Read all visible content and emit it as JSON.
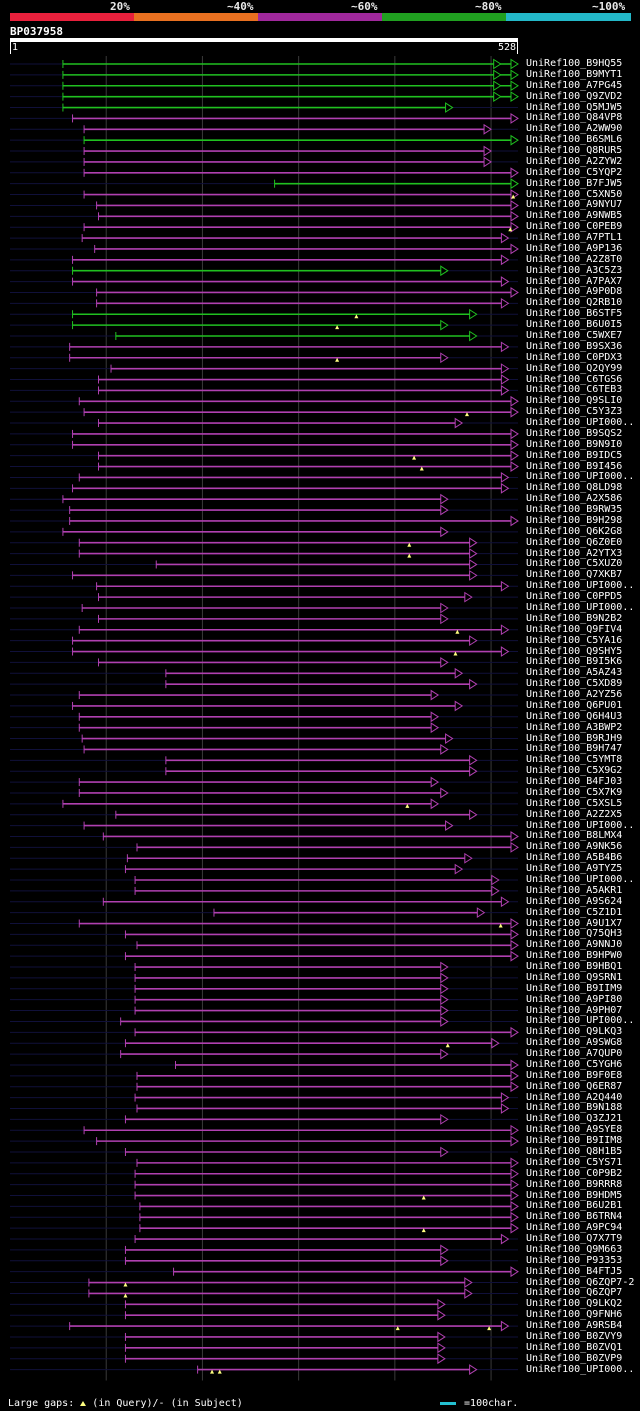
{
  "legend": {
    "labels": [
      "20%",
      "~40%",
      "~60%",
      "~80%",
      "~100%"
    ],
    "colors": [
      "#e8203c",
      "#e87020",
      "#a0289c",
      "#20a020",
      "#23b8c8"
    ]
  },
  "query": {
    "name": "BP037958",
    "start": "1",
    "end": "528",
    "length": 528
  },
  "hits": [
    {
      "label": "UniRef100_B9HQ55",
      "s": 55,
      "e": 528,
      "c": "g",
      "g": [
        510
      ]
    },
    {
      "label": "UniRef100_B9MYT1",
      "s": 55,
      "e": 528,
      "c": "g",
      "g": [
        510
      ]
    },
    {
      "label": "UniRef100_A7PG45",
      "s": 55,
      "e": 528,
      "c": "g",
      "g": [
        510
      ]
    },
    {
      "label": "UniRef100_Q9ZVD2",
      "s": 55,
      "e": 528,
      "c": "g",
      "g": [
        510
      ]
    },
    {
      "label": "UniRef100_Q5MJW5",
      "s": 55,
      "e": 460,
      "c": "g"
    },
    {
      "label": "UniRef100_Q84VP8",
      "s": 65,
      "e": 528,
      "c": "p"
    },
    {
      "label": "UniRef100_A2WW90",
      "s": 77,
      "e": 500,
      "c": "p"
    },
    {
      "label": "UniRef100_B6SML6",
      "s": 77,
      "e": 528,
      "c": "g"
    },
    {
      "label": "UniRef100_Q8RUR5",
      "s": 77,
      "e": 500,
      "c": "p"
    },
    {
      "label": "UniRef100_A2ZYW2",
      "s": 77,
      "e": 500,
      "c": "p"
    },
    {
      "label": "UniRef100_C5YQP2",
      "s": 77,
      "e": 528,
      "c": "p"
    },
    {
      "label": "UniRef100_B7FJW5",
      "s": 275,
      "e": 528,
      "c": "g"
    },
    {
      "label": "UniRef100_C5XN50",
      "s": 77,
      "e": 528,
      "c": "p",
      "t": [
        523
      ]
    },
    {
      "label": "UniRef100_A9NYU7",
      "s": 90,
      "e": 528,
      "c": "p"
    },
    {
      "label": "UniRef100_A9NWB5",
      "s": 92,
      "e": 528,
      "c": "p"
    },
    {
      "label": "UniRef100_C0PEB9",
      "s": 77,
      "e": 528,
      "c": "p",
      "t": [
        520
      ]
    },
    {
      "label": "UniRef100_A7PTL1",
      "s": 75,
      "e": 518,
      "c": "p"
    },
    {
      "label": "UniRef100_A9P136",
      "s": 88,
      "e": 528,
      "c": "p"
    },
    {
      "label": "UniRef100_A2Z8T0",
      "s": 65,
      "e": 518,
      "c": "p"
    },
    {
      "label": "UniRef100_A3C5Z3",
      "s": 65,
      "e": 455,
      "c": "g"
    },
    {
      "label": "UniRef100_A7PAX7",
      "s": 65,
      "e": 518,
      "c": "p"
    },
    {
      "label": "UniRef100_A9P0D8",
      "s": 90,
      "e": 528,
      "c": "p"
    },
    {
      "label": "UniRef100_Q2RB10",
      "s": 90,
      "e": 518,
      "c": "p"
    },
    {
      "label": "UniRef100_B6STF5",
      "s": 65,
      "e": 485,
      "c": "g",
      "t": [
        360
      ]
    },
    {
      "label": "UniRef100_B6U0I5",
      "s": 65,
      "e": 455,
      "c": "g",
      "t": [
        340
      ]
    },
    {
      "label": "UniRef100_C5WXE7",
      "s": 110,
      "e": 485,
      "c": "g"
    },
    {
      "label": "UniRef100_B9SX36",
      "s": 62,
      "e": 518,
      "c": "p"
    },
    {
      "label": "UniRef100_C0PDX3",
      "s": 62,
      "e": 455,
      "c": "p",
      "t": [
        340
      ]
    },
    {
      "label": "UniRef100_Q2QY99",
      "s": 105,
      "e": 518,
      "c": "p"
    },
    {
      "label": "UniRef100_C6TGS6",
      "s": 92,
      "e": 518,
      "c": "p"
    },
    {
      "label": "UniRef100_C6TEB3",
      "s": 92,
      "e": 518,
      "c": "p"
    },
    {
      "label": "UniRef100_Q9SLI0",
      "s": 72,
      "e": 528,
      "c": "p"
    },
    {
      "label": "UniRef100_C5Y3Z3",
      "s": 77,
      "e": 528,
      "c": "p",
      "t": [
        475
      ]
    },
    {
      "label": "UniRef100_UPI000..",
      "s": 92,
      "e": 470,
      "c": "p"
    },
    {
      "label": "UniRef100_B9SQS2",
      "s": 65,
      "e": 528,
      "c": "p"
    },
    {
      "label": "UniRef100_B9N9I0",
      "s": 65,
      "e": 528,
      "c": "p"
    },
    {
      "label": "UniRef100_B9IDC5",
      "s": 92,
      "e": 528,
      "c": "p",
      "t": [
        420
      ]
    },
    {
      "label": "UniRef100_B9I456",
      "s": 92,
      "e": 528,
      "c": "p",
      "t": [
        428
      ]
    },
    {
      "label": "UniRef100_UPI000..",
      "s": 72,
      "e": 518,
      "c": "p"
    },
    {
      "label": "UniRef100_Q8LD98",
      "s": 65,
      "e": 518,
      "c": "p"
    },
    {
      "label": "UniRef100_A2X586",
      "s": 55,
      "e": 455,
      "c": "p"
    },
    {
      "label": "UniRef100_B9RW35",
      "s": 62,
      "e": 455,
      "c": "p"
    },
    {
      "label": "UniRef100_B9H298",
      "s": 62,
      "e": 528,
      "c": "p"
    },
    {
      "label": "UniRef100_Q6K2G8",
      "s": 55,
      "e": 455,
      "c": "p"
    },
    {
      "label": "UniRef100_Q6Z0E0",
      "s": 72,
      "e": 485,
      "c": "p",
      "t": [
        415
      ]
    },
    {
      "label": "UniRef100_A2YTX3",
      "s": 72,
      "e": 485,
      "c": "p",
      "t": [
        415
      ]
    },
    {
      "label": "UniRef100_C5XUZ0",
      "s": 152,
      "e": 485,
      "c": "p"
    },
    {
      "label": "UniRef100_Q7XKB7",
      "s": 65,
      "e": 485,
      "c": "p"
    },
    {
      "label": "UniRef100_UPI000..",
      "s": 90,
      "e": 518,
      "c": "p"
    },
    {
      "label": "UniRef100_C0PPD5",
      "s": 92,
      "e": 480,
      "c": "p"
    },
    {
      "label": "UniRef100_UPI000..",
      "s": 75,
      "e": 455,
      "c": "p"
    },
    {
      "label": "UniRef100_B9N2B2",
      "s": 92,
      "e": 455,
      "c": "p"
    },
    {
      "label": "UniRef100_Q9FIV4",
      "s": 72,
      "e": 518,
      "c": "p",
      "t": [
        465
      ]
    },
    {
      "label": "UniRef100_C5YA16",
      "s": 65,
      "e": 485,
      "c": "p"
    },
    {
      "label": "UniRef100_Q9SHY5",
      "s": 65,
      "e": 518,
      "c": "p",
      "t": [
        463
      ]
    },
    {
      "label": "UniRef100_B9I5K6",
      "s": 92,
      "e": 455,
      "c": "p"
    },
    {
      "label": "UniRef100_A5AZ43",
      "s": 162,
      "e": 470,
      "c": "p"
    },
    {
      "label": "UniRef100_C5XD89",
      "s": 162,
      "e": 485,
      "c": "p"
    },
    {
      "label": "UniRef100_A2YZ56",
      "s": 72,
      "e": 445,
      "c": "p"
    },
    {
      "label": "UniRef100_Q6PU01",
      "s": 65,
      "e": 470,
      "c": "p"
    },
    {
      "label": "UniRef100_Q6H4U3",
      "s": 72,
      "e": 445,
      "c": "p"
    },
    {
      "label": "UniRef100_A3BWP2",
      "s": 72,
      "e": 445,
      "c": "p"
    },
    {
      "label": "UniRef100_B9RJH9",
      "s": 75,
      "e": 460,
      "c": "p"
    },
    {
      "label": "UniRef100_B9H747",
      "s": 77,
      "e": 455,
      "c": "p"
    },
    {
      "label": "UniRef100_C5YMT8",
      "s": 162,
      "e": 485,
      "c": "p"
    },
    {
      "label": "UniRef100_C5X9G2",
      "s": 162,
      "e": 485,
      "c": "p"
    },
    {
      "label": "UniRef100_B4FJ03",
      "s": 72,
      "e": 445,
      "c": "p"
    },
    {
      "label": "UniRef100_C5X7K9",
      "s": 72,
      "e": 455,
      "c": "p"
    },
    {
      "label": "UniRef100_C5XSL5",
      "s": 55,
      "e": 445,
      "c": "p",
      "t": [
        413
      ]
    },
    {
      "label": "UniRef100_A2Z2X5",
      "s": 110,
      "e": 485,
      "c": "p"
    },
    {
      "label": "UniRef100_UPI000..",
      "s": 77,
      "e": 460,
      "c": "p"
    },
    {
      "label": "UniRef100_B8LMX4",
      "s": 97,
      "e": 528,
      "c": "p"
    },
    {
      "label": "UniRef100_A9NK56",
      "s": 132,
      "e": 528,
      "c": "p"
    },
    {
      "label": "UniRef100_A5B4B6",
      "s": 122,
      "e": 480,
      "c": "p"
    },
    {
      "label": "UniRef100_A9TYZ5",
      "s": 120,
      "e": 470,
      "c": "p"
    },
    {
      "label": "UniRef100_UPI000..",
      "s": 130,
      "e": 508,
      "c": "p"
    },
    {
      "label": "UniRef100_A5AKR1",
      "s": 130,
      "e": 508,
      "c": "p"
    },
    {
      "label": "UniRef100_A9S624",
      "s": 97,
      "e": 518,
      "c": "p"
    },
    {
      "label": "UniRef100_C5Z1D1",
      "s": 212,
      "e": 493,
      "c": "p"
    },
    {
      "label": "UniRef100_A9U1X7",
      "s": 72,
      "e": 528,
      "c": "p",
      "t": [
        510
      ]
    },
    {
      "label": "UniRef100_Q75QH3",
      "s": 120,
      "e": 528,
      "c": "p"
    },
    {
      "label": "UniRef100_A9NNJ0",
      "s": 132,
      "e": 528,
      "c": "p"
    },
    {
      "label": "UniRef100_B9HPW0",
      "s": 120,
      "e": 528,
      "c": "p"
    },
    {
      "label": "UniRef100_B9HBQ1",
      "s": 130,
      "e": 455,
      "c": "p"
    },
    {
      "label": "UniRef100_Q9SRN1",
      "s": 130,
      "e": 455,
      "c": "p"
    },
    {
      "label": "UniRef100_B9IIM9",
      "s": 130,
      "e": 455,
      "c": "p"
    },
    {
      "label": "UniRef100_A9PI80",
      "s": 130,
      "e": 455,
      "c": "p"
    },
    {
      "label": "UniRef100_A9PH07",
      "s": 130,
      "e": 455,
      "c": "p"
    },
    {
      "label": "UniRef100_UPI000..",
      "s": 115,
      "e": 455,
      "c": "p"
    },
    {
      "label": "UniRef100_Q9LKQ3",
      "s": 130,
      "e": 528,
      "c": "p"
    },
    {
      "label": "UniRef100_A9SWG8",
      "s": 120,
      "e": 508,
      "c": "p",
      "t": [
        455
      ]
    },
    {
      "label": "UniRef100_A7QUP0",
      "s": 115,
      "e": 455,
      "c": "p"
    },
    {
      "label": "UniRef100_C5YGH6",
      "s": 172,
      "e": 528,
      "c": "p"
    },
    {
      "label": "UniRef100_B9F0E8",
      "s": 132,
      "e": 528,
      "c": "p"
    },
    {
      "label": "UniRef100_Q6ER87",
      "s": 132,
      "e": 528,
      "c": "p"
    },
    {
      "label": "UniRef100_A2Q440",
      "s": 130,
      "e": 518,
      "c": "p"
    },
    {
      "label": "UniRef100_B9N188",
      "s": 132,
      "e": 518,
      "c": "p"
    },
    {
      "label": "UniRef100_Q3ZJ21",
      "s": 120,
      "e": 455,
      "c": "p"
    },
    {
      "label": "UniRef100_A9SYE8",
      "s": 77,
      "e": 528,
      "c": "p"
    },
    {
      "label": "UniRef100_B9IIM8",
      "s": 90,
      "e": 528,
      "c": "p"
    },
    {
      "label": "UniRef100_Q8H1B5",
      "s": 120,
      "e": 455,
      "c": "p"
    },
    {
      "label": "UniRef100_C5YS71",
      "s": 132,
      "e": 528,
      "c": "p"
    },
    {
      "label": "UniRef100_C0P9B2",
      "s": 130,
      "e": 528,
      "c": "p"
    },
    {
      "label": "UniRef100_B9RRR8",
      "s": 130,
      "e": 528,
      "c": "p"
    },
    {
      "label": "UniRef100_B9HDM5",
      "s": 130,
      "e": 528,
      "c": "p",
      "t": [
        430
      ]
    },
    {
      "label": "UniRef100_B6U2B1",
      "s": 135,
      "e": 528,
      "c": "p"
    },
    {
      "label": "UniRef100_B6TRN4",
      "s": 135,
      "e": 528,
      "c": "p"
    },
    {
      "label": "UniRef100_A9PC94",
      "s": 135,
      "e": 528,
      "c": "p",
      "t": [
        430
      ]
    },
    {
      "label": "UniRef100_Q7X7T9",
      "s": 130,
      "e": 518,
      "c": "p"
    },
    {
      "label": "UniRef100_Q9M663",
      "s": 120,
      "e": 455,
      "c": "p"
    },
    {
      "label": "UniRef100_P93353",
      "s": 120,
      "e": 455,
      "c": "p"
    },
    {
      "label": "UniRef100_B4FTJ5",
      "s": 170,
      "e": 528,
      "c": "p"
    },
    {
      "label": "UniRef100_Q6ZQP7-2",
      "s": 82,
      "e": 480,
      "c": "p",
      "t": [
        120
      ]
    },
    {
      "label": "UniRef100_Q6ZQP7",
      "s": 82,
      "e": 480,
      "c": "p",
      "t": [
        120
      ]
    },
    {
      "label": "UniRef100_Q9LKQ2",
      "s": 120,
      "e": 452,
      "c": "p"
    },
    {
      "label": "UniRef100_Q9FNH6",
      "s": 120,
      "e": 452,
      "c": "p"
    },
    {
      "label": "UniRef100_A9RSB4",
      "s": 62,
      "e": 518,
      "c": "p",
      "t": [
        403,
        498
      ]
    },
    {
      "label": "UniRef100_B0ZVY9",
      "s": 120,
      "e": 452,
      "c": "p"
    },
    {
      "label": "UniRef100_B0ZVQ1",
      "s": 120,
      "e": 452,
      "c": "p"
    },
    {
      "label": "UniRef100_B0ZVP9",
      "s": 120,
      "e": 452,
      "c": "p"
    },
    {
      "label": "UniRef100_UPI000..",
      "s": 195,
      "e": 485,
      "c": "p",
      "t": [
        210,
        218
      ]
    }
  ],
  "footer": {
    "gaps_text": "Large gaps:",
    "query_text": "(in Query)/- (in Subject)",
    "scale_text": "=100char."
  }
}
